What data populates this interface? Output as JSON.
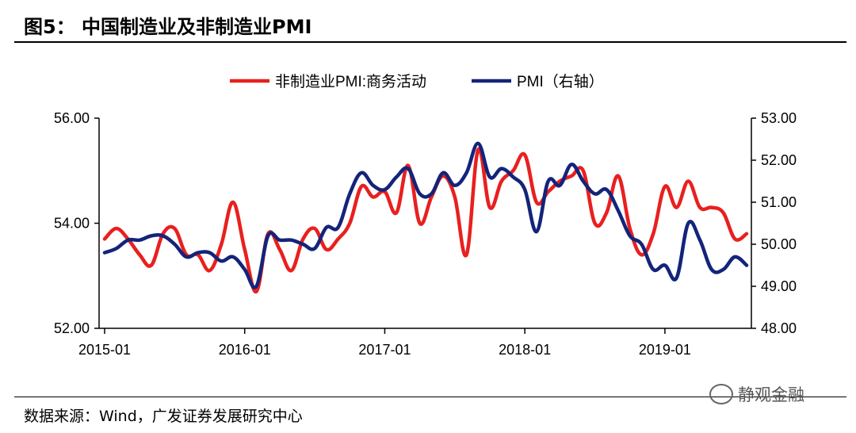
{
  "header": {
    "figure_title": "图5：  中国制造业及非制造业PMI"
  },
  "footer": {
    "source": "数据来源：Wind，广发证券发展研究中心",
    "watermark": "静观金融"
  },
  "colors": {
    "nonmfg_series": "#e8201f",
    "pmi_series": "#13247a",
    "axis": "#000000"
  },
  "chart_data": {
    "type": "line",
    "title": "图5：  中国制造业及非制造业PMI",
    "x_labels": [
      "2015-01",
      "2016-01",
      "2017-01",
      "2018-01",
      "2019-01"
    ],
    "x_range": [
      "2015-01",
      "2019-08"
    ],
    "months": [
      "2015-01",
      "2015-02",
      "2015-03",
      "2015-04",
      "2015-05",
      "2015-06",
      "2015-07",
      "2015-08",
      "2015-09",
      "2015-10",
      "2015-11",
      "2015-12",
      "2016-01",
      "2016-02",
      "2016-03",
      "2016-04",
      "2016-05",
      "2016-06",
      "2016-07",
      "2016-08",
      "2016-09",
      "2016-10",
      "2016-11",
      "2016-12",
      "2017-01",
      "2017-02",
      "2017-03",
      "2017-04",
      "2017-05",
      "2017-06",
      "2017-07",
      "2017-08",
      "2017-09",
      "2017-10",
      "2017-11",
      "2017-12",
      "2018-01",
      "2018-02",
      "2018-03",
      "2018-04",
      "2018-05",
      "2018-06",
      "2018-07",
      "2018-08",
      "2018-09",
      "2018-10",
      "2018-11",
      "2018-12",
      "2019-01",
      "2019-02",
      "2019-03",
      "2019-04",
      "2019-05",
      "2019-06",
      "2019-07",
      "2019-08"
    ],
    "legend": [
      "非制造业PMI:商务活动",
      "PMI（右轴）"
    ],
    "y_left": {
      "ticks": [
        "52.00",
        "54.00",
        "56.00"
      ],
      "range": [
        52,
        56
      ]
    },
    "y_right": {
      "ticks": [
        "48.00",
        "49.00",
        "50.00",
        "51.00",
        "52.00",
        "53.00"
      ],
      "range": [
        48,
        53
      ]
    },
    "series": [
      {
        "name": "非制造业PMI:商务活动",
        "axis": "left",
        "values": [
          53.7,
          53.9,
          53.7,
          53.4,
          53.2,
          53.8,
          53.9,
          53.4,
          53.4,
          53.1,
          53.6,
          54.4,
          53.5,
          52.7,
          53.8,
          53.5,
          53.1,
          53.7,
          53.9,
          53.5,
          53.7,
          54.0,
          54.7,
          54.5,
          54.6,
          54.2,
          55.1,
          54.0,
          54.5,
          54.9,
          54.5,
          53.4,
          55.4,
          54.3,
          54.8,
          55.0,
          55.3,
          54.4,
          54.6,
          54.8,
          54.9,
          55.0,
          54.0,
          54.2,
          54.9,
          53.9,
          53.4,
          53.8,
          54.7,
          54.3,
          54.8,
          54.3,
          54.3,
          54.2,
          53.7,
          53.8
        ]
      },
      {
        "name": "PMI（右轴）",
        "axis": "right",
        "values": [
          49.8,
          49.9,
          50.1,
          50.1,
          50.2,
          50.2,
          50.0,
          49.7,
          49.8,
          49.8,
          49.6,
          49.7,
          49.4,
          49.0,
          50.2,
          50.1,
          50.1,
          50.0,
          49.9,
          50.4,
          50.4,
          51.2,
          51.7,
          51.4,
          51.3,
          51.6,
          51.8,
          51.2,
          51.2,
          51.7,
          51.4,
          51.7,
          52.4,
          51.6,
          51.8,
          51.6,
          51.3,
          50.3,
          51.5,
          51.4,
          51.9,
          51.5,
          51.2,
          51.3,
          50.8,
          50.2,
          50.0,
          49.4,
          49.5,
          49.2,
          50.5,
          50.1,
          49.4,
          49.4,
          49.7,
          49.5
        ]
      }
    ]
  }
}
